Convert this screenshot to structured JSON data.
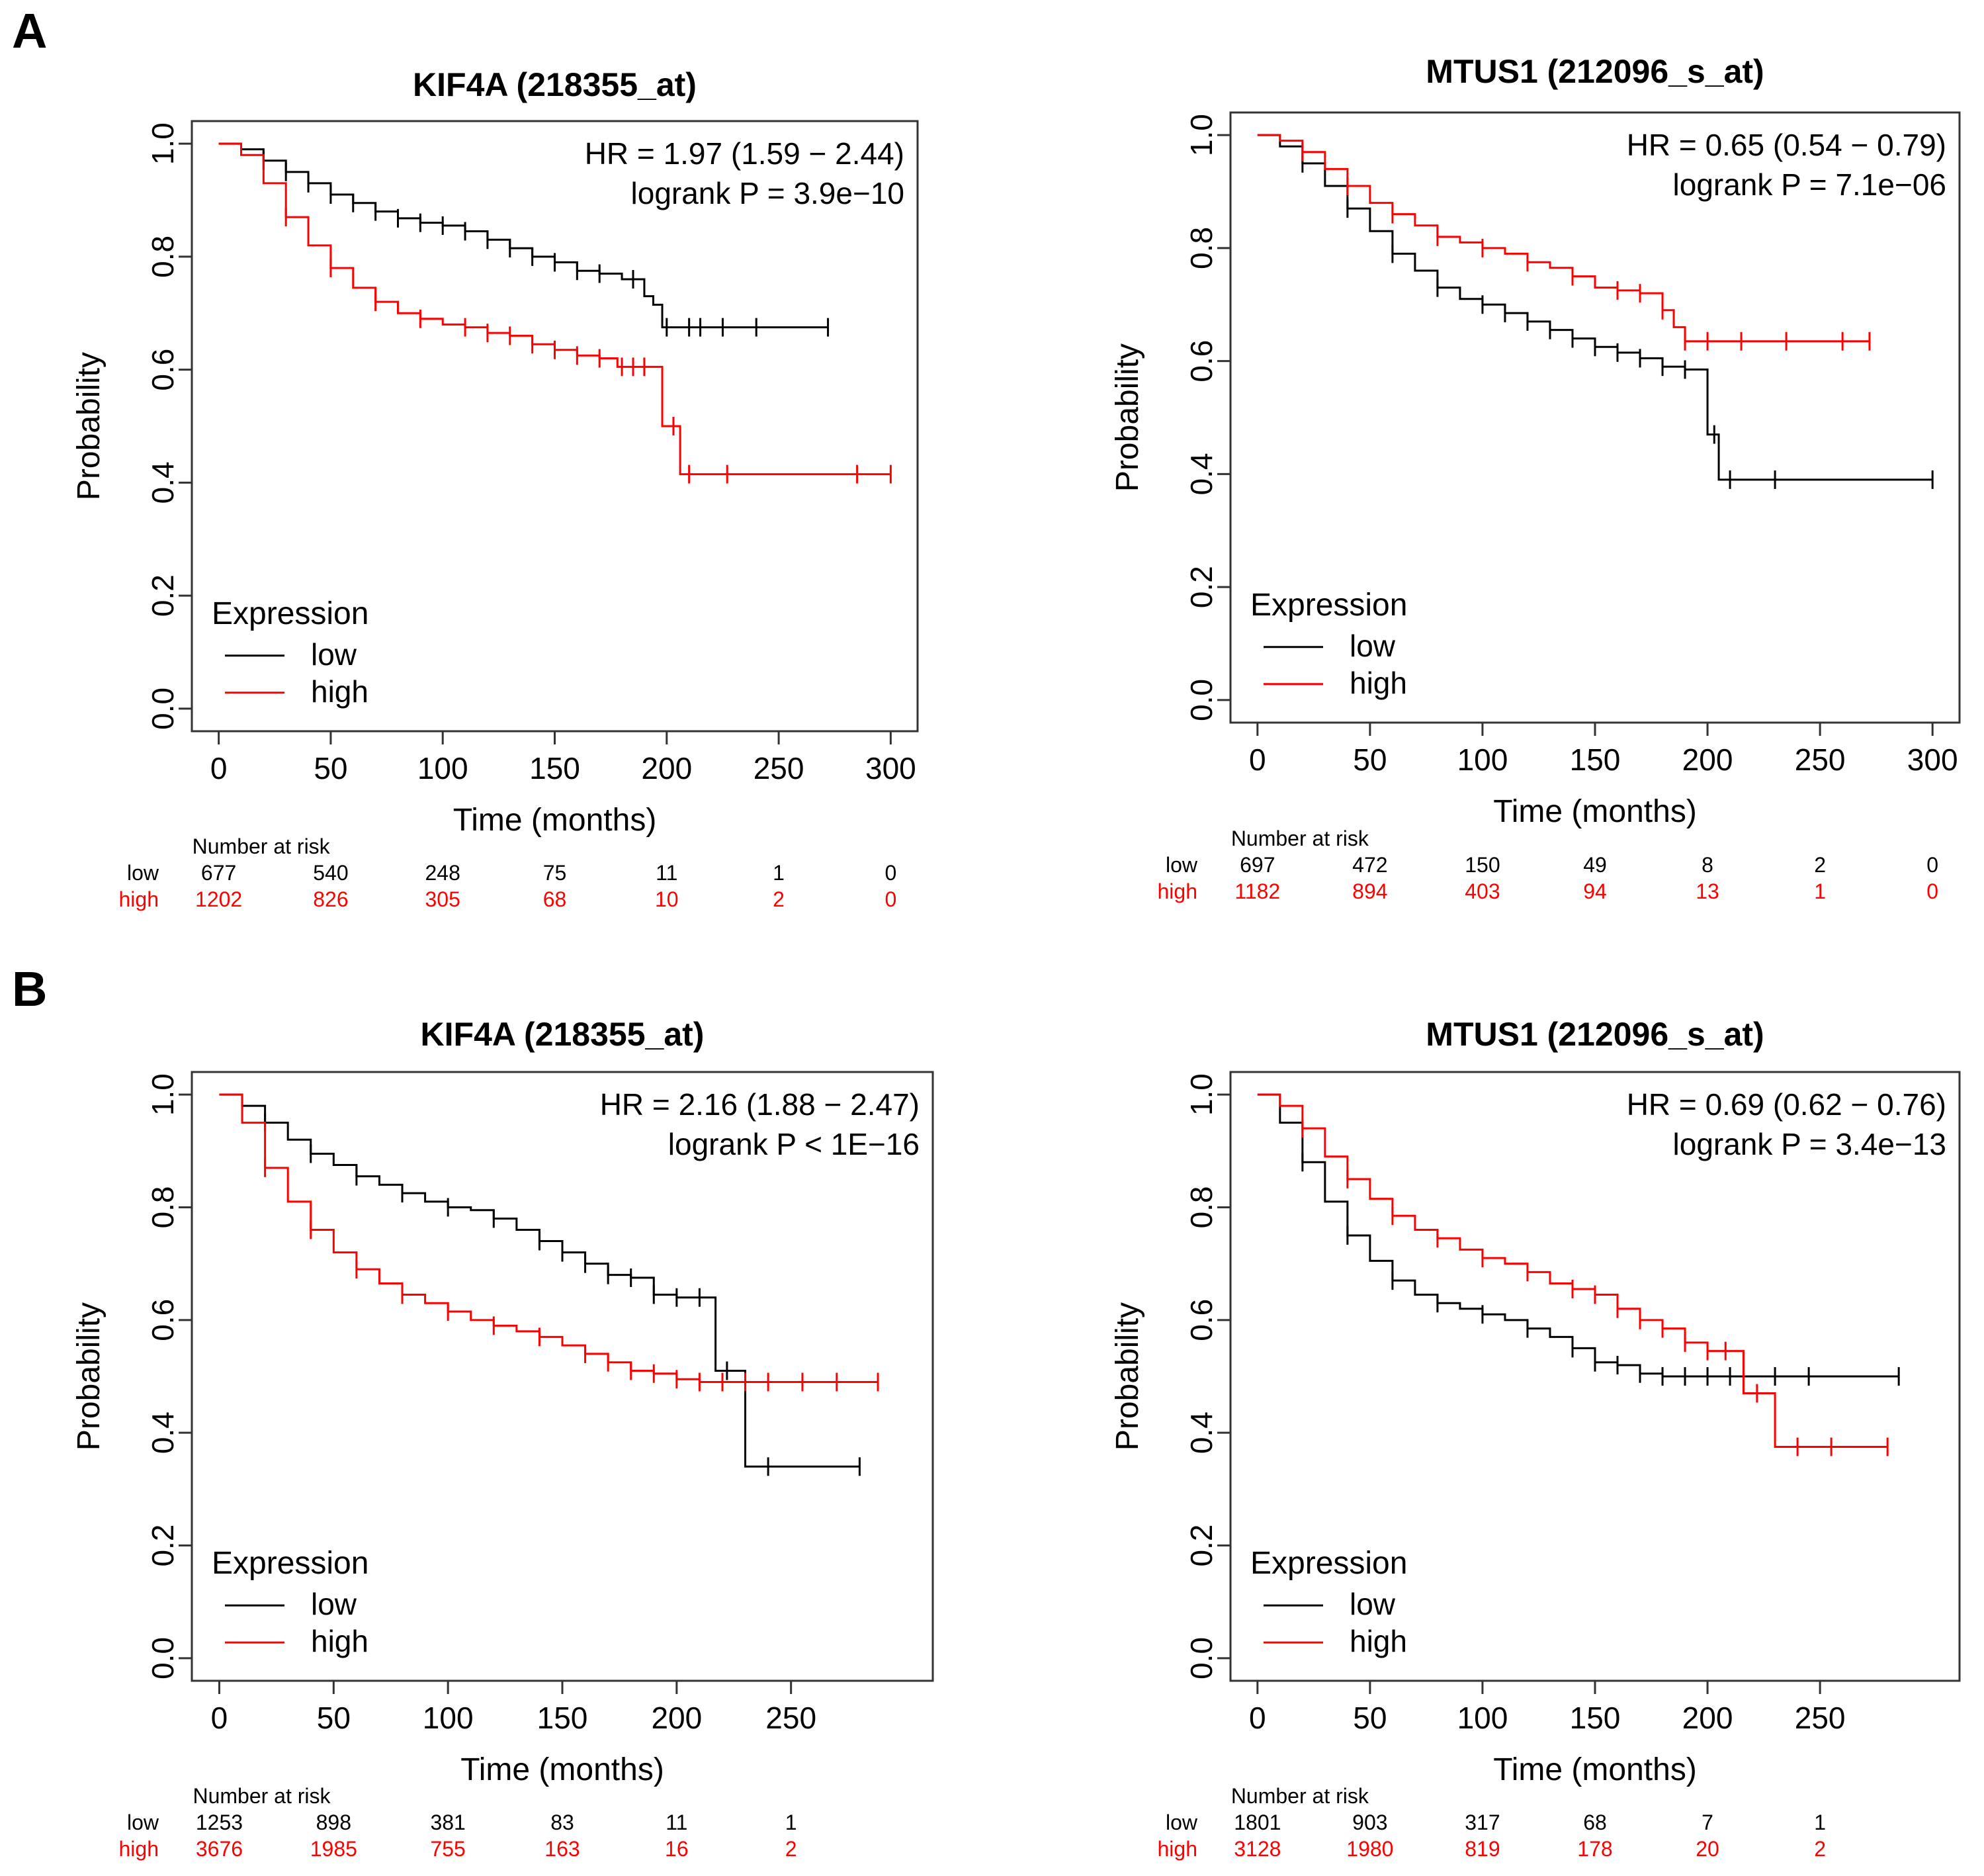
{
  "figure": {
    "panel_letters": [
      "A",
      "B"
    ],
    "xlabel": "Time (months)",
    "ylabel": "Probability",
    "legend_title": "Expression",
    "risk_header": "Number at risk",
    "colors": {
      "low": "#000000",
      "high": "#ff0000",
      "axis": "#333333",
      "text": "#000000"
    }
  },
  "chart_data": [
    {
      "type": "line",
      "panel": "A",
      "title": "KIF4A  (218355_at)",
      "xlabel": "Time (months)",
      "ylabel": "Probability",
      "xlim": [
        0,
        300
      ],
      "ylim": [
        0,
        1
      ],
      "x_ticks": [
        0,
        50,
        100,
        150,
        200,
        250,
        300
      ],
      "y_ticks": [
        "0.0",
        "0.2",
        "0.4",
        "0.6",
        "0.8",
        "1.0"
      ],
      "hr_text": "HR = 1.97 (1.59 − 2.44)",
      "p_text": "logrank P = 3.9e−10",
      "legend": {
        "title": "Expression",
        "labels": [
          "low",
          "high"
        ],
        "placement": "bottom-left"
      },
      "series": [
        {
          "name": "low",
          "color": "#000000",
          "x": [
            0,
            10,
            20,
            30,
            40,
            50,
            60,
            70,
            80,
            90,
            100,
            110,
            120,
            130,
            140,
            150,
            160,
            170,
            180,
            190,
            194,
            198,
            272
          ],
          "y": [
            1.0,
            0.99,
            0.97,
            0.95,
            0.93,
            0.91,
            0.895,
            0.88,
            0.868,
            0.86,
            0.855,
            0.845,
            0.83,
            0.815,
            0.8,
            0.79,
            0.775,
            0.77,
            0.76,
            0.73,
            0.715,
            0.675,
            0.675
          ],
          "censor_x": [
            20,
            30,
            40,
            50,
            60,
            70,
            80,
            90,
            100,
            110,
            120,
            130,
            140,
            150,
            160,
            170,
            185,
            200,
            210,
            215,
            225,
            240,
            272
          ]
        },
        {
          "name": "high",
          "color": "#ff0000",
          "x": [
            0,
            10,
            20,
            30,
            40,
            50,
            60,
            70,
            80,
            90,
            100,
            110,
            120,
            130,
            140,
            150,
            160,
            170,
            178,
            195,
            198,
            203,
            206,
            300
          ],
          "y": [
            1.0,
            0.98,
            0.93,
            0.87,
            0.82,
            0.78,
            0.745,
            0.72,
            0.7,
            0.69,
            0.68,
            0.675,
            0.665,
            0.66,
            0.645,
            0.635,
            0.625,
            0.62,
            0.605,
            0.605,
            0.5,
            0.5,
            0.415,
            0.415
          ],
          "censor_x": [
            30,
            50,
            70,
            90,
            110,
            120,
            130,
            140,
            150,
            160,
            170,
            180,
            185,
            190,
            203,
            210,
            227,
            285,
            300
          ]
        }
      ],
      "risk_table": {
        "times": [
          0,
          50,
          100,
          150,
          200,
          250,
          300
        ],
        "low": [
          "677",
          "540",
          "248",
          "75",
          "11",
          "1",
          "0"
        ],
        "high": [
          "1202",
          "826",
          "305",
          "68",
          "10",
          "2",
          "0"
        ]
      }
    },
    {
      "type": "line",
      "panel": "A",
      "title": "MTUS1  (212096_s_at)",
      "xlabel": "Time (months)",
      "ylabel": "Probability",
      "xlim": [
        0,
        300
      ],
      "ylim": [
        0,
        1
      ],
      "x_ticks": [
        0,
        50,
        100,
        150,
        200,
        250,
        300
      ],
      "y_ticks": [
        "0.0",
        "0.2",
        "0.4",
        "0.6",
        "0.8",
        "1.0"
      ],
      "hr_text": "HR = 0.65 (0.54 − 0.79)",
      "p_text": "logrank P = 7.1e−06",
      "legend": {
        "title": "Expression",
        "labels": [
          "low",
          "high"
        ],
        "placement": "bottom-left"
      },
      "series": [
        {
          "name": "low",
          "color": "#000000",
          "x": [
            0,
            10,
            20,
            30,
            40,
            50,
            60,
            70,
            80,
            90,
            100,
            110,
            120,
            130,
            140,
            150,
            160,
            170,
            180,
            190,
            197,
            200,
            205,
            300
          ],
          "y": [
            1.0,
            0.98,
            0.95,
            0.91,
            0.87,
            0.83,
            0.79,
            0.76,
            0.73,
            0.71,
            0.7,
            0.685,
            0.67,
            0.655,
            0.64,
            0.625,
            0.615,
            0.605,
            0.59,
            0.585,
            0.585,
            0.47,
            0.39,
            0.39
          ],
          "censor_x": [
            20,
            40,
            60,
            80,
            100,
            110,
            120,
            130,
            140,
            150,
            160,
            170,
            180,
            190,
            203,
            210,
            230,
            300
          ]
        },
        {
          "name": "high",
          "color": "#ff0000",
          "x": [
            0,
            10,
            20,
            30,
            40,
            50,
            60,
            70,
            80,
            90,
            100,
            110,
            120,
            130,
            140,
            150,
            160,
            170,
            180,
            185,
            190,
            272
          ],
          "y": [
            1.0,
            0.99,
            0.97,
            0.94,
            0.91,
            0.88,
            0.86,
            0.84,
            0.82,
            0.81,
            0.8,
            0.79,
            0.775,
            0.765,
            0.75,
            0.73,
            0.725,
            0.72,
            0.69,
            0.66,
            0.635,
            0.635
          ],
          "censor_x": [
            20,
            40,
            60,
            80,
            100,
            120,
            140,
            160,
            170,
            180,
            190,
            200,
            215,
            235,
            260,
            272
          ]
        }
      ],
      "risk_table": {
        "times": [
          0,
          50,
          100,
          150,
          200,
          250,
          300
        ],
        "low": [
          "697",
          "472",
          "150",
          "49",
          "8",
          "2",
          "0"
        ],
        "high": [
          "1182",
          "894",
          "403",
          "94",
          "13",
          "1",
          "0"
        ]
      }
    },
    {
      "type": "line",
      "panel": "B",
      "title": "KIF4A  (218355_at)",
      "xlabel": "Time (months)",
      "ylabel": "Probability",
      "xlim": [
        0,
        300
      ],
      "ylim": [
        0,
        1
      ],
      "x_ticks": [
        0,
        50,
        100,
        150,
        200,
        250
      ],
      "y_ticks": [
        "0.0",
        "0.2",
        "0.4",
        "0.6",
        "0.8",
        "1.0"
      ],
      "hr_text": "HR = 2.16 (1.88 − 2.47)",
      "p_text": "logrank P < 1E−16",
      "legend": {
        "title": "Expression",
        "labels": [
          "low",
          "high"
        ],
        "placement": "bottom-left"
      },
      "series": [
        {
          "name": "low",
          "color": "#000000",
          "x": [
            0,
            10,
            20,
            30,
            40,
            50,
            60,
            70,
            80,
            90,
            100,
            110,
            120,
            130,
            140,
            150,
            160,
            170,
            180,
            190,
            200,
            210,
            215,
            217,
            228,
            230,
            280
          ],
          "y": [
            1.0,
            0.98,
            0.95,
            0.92,
            0.895,
            0.875,
            0.855,
            0.84,
            0.825,
            0.81,
            0.8,
            0.795,
            0.78,
            0.76,
            0.74,
            0.72,
            0.7,
            0.68,
            0.675,
            0.645,
            0.64,
            0.64,
            0.64,
            0.51,
            0.51,
            0.34,
            0.34
          ],
          "censor_x": [
            20,
            40,
            60,
            80,
            100,
            120,
            140,
            150,
            160,
            170,
            180,
            190,
            200,
            210,
            222,
            240,
            280
          ]
        },
        {
          "name": "high",
          "color": "#ff0000",
          "x": [
            0,
            10,
            20,
            30,
            40,
            50,
            60,
            70,
            80,
            90,
            100,
            110,
            120,
            130,
            140,
            150,
            160,
            170,
            180,
            190,
            200,
            210,
            288
          ],
          "y": [
            1.0,
            0.95,
            0.87,
            0.81,
            0.76,
            0.72,
            0.69,
            0.665,
            0.645,
            0.63,
            0.615,
            0.6,
            0.59,
            0.58,
            0.57,
            0.555,
            0.54,
            0.525,
            0.51,
            0.505,
            0.495,
            0.49,
            0.49
          ],
          "censor_x": [
            20,
            40,
            60,
            80,
            100,
            120,
            140,
            160,
            170,
            180,
            190,
            200,
            210,
            220,
            230,
            240,
            255,
            270,
            288
          ]
        }
      ],
      "risk_table": {
        "times": [
          0,
          50,
          100,
          150,
          200,
          250
        ],
        "low": [
          "1253",
          "898",
          "381",
          "83",
          "11",
          "1"
        ],
        "high": [
          "3676",
          "1985",
          "755",
          "163",
          "16",
          "2"
        ]
      }
    },
    {
      "type": "line",
      "panel": "B",
      "title": "MTUS1  (212096_s_at)",
      "xlabel": "Time (months)",
      "ylabel": "Probability",
      "xlim": [
        0,
        300
      ],
      "ylim": [
        0,
        1
      ],
      "x_ticks": [
        0,
        50,
        100,
        150,
        200,
        250
      ],
      "y_ticks": [
        "0.0",
        "0.2",
        "0.4",
        "0.6",
        "0.8",
        "1.0"
      ],
      "hr_text": "HR = 0.69 (0.62 − 0.76)",
      "p_text": "logrank P = 3.4e−13",
      "legend": {
        "title": "Expression",
        "labels": [
          "low",
          "high"
        ],
        "placement": "bottom-left"
      },
      "series": [
        {
          "name": "low",
          "color": "#000000",
          "x": [
            0,
            10,
            20,
            30,
            40,
            50,
            60,
            70,
            80,
            90,
            100,
            110,
            120,
            130,
            140,
            150,
            160,
            170,
            180,
            285
          ],
          "y": [
            1.0,
            0.95,
            0.88,
            0.81,
            0.75,
            0.705,
            0.67,
            0.645,
            0.63,
            0.62,
            0.61,
            0.6,
            0.585,
            0.57,
            0.55,
            0.525,
            0.52,
            0.505,
            0.5,
            0.5
          ],
          "censor_x": [
            20,
            40,
            60,
            80,
            100,
            120,
            140,
            150,
            160,
            170,
            180,
            190,
            200,
            210,
            230,
            245,
            285
          ]
        },
        {
          "name": "high",
          "color": "#ff0000",
          "x": [
            0,
            10,
            20,
            30,
            40,
            50,
            60,
            70,
            80,
            90,
            100,
            110,
            120,
            130,
            140,
            150,
            160,
            170,
            180,
            190,
            200,
            208,
            216,
            220,
            230,
            280
          ],
          "y": [
            1.0,
            0.98,
            0.94,
            0.89,
            0.85,
            0.815,
            0.785,
            0.76,
            0.745,
            0.725,
            0.71,
            0.7,
            0.685,
            0.665,
            0.655,
            0.645,
            0.62,
            0.6,
            0.585,
            0.56,
            0.545,
            0.545,
            0.47,
            0.47,
            0.375,
            0.375
          ],
          "censor_x": [
            20,
            40,
            60,
            80,
            100,
            120,
            140,
            150,
            160,
            170,
            180,
            190,
            200,
            208,
            222,
            240,
            255,
            280
          ]
        }
      ],
      "risk_table": {
        "times": [
          0,
          50,
          100,
          150,
          200,
          250
        ],
        "low": [
          "1801",
          "903",
          "317",
          "68",
          "7",
          "1"
        ],
        "high": [
          "3128",
          "1980",
          "819",
          "178",
          "20",
          "2"
        ]
      }
    }
  ]
}
